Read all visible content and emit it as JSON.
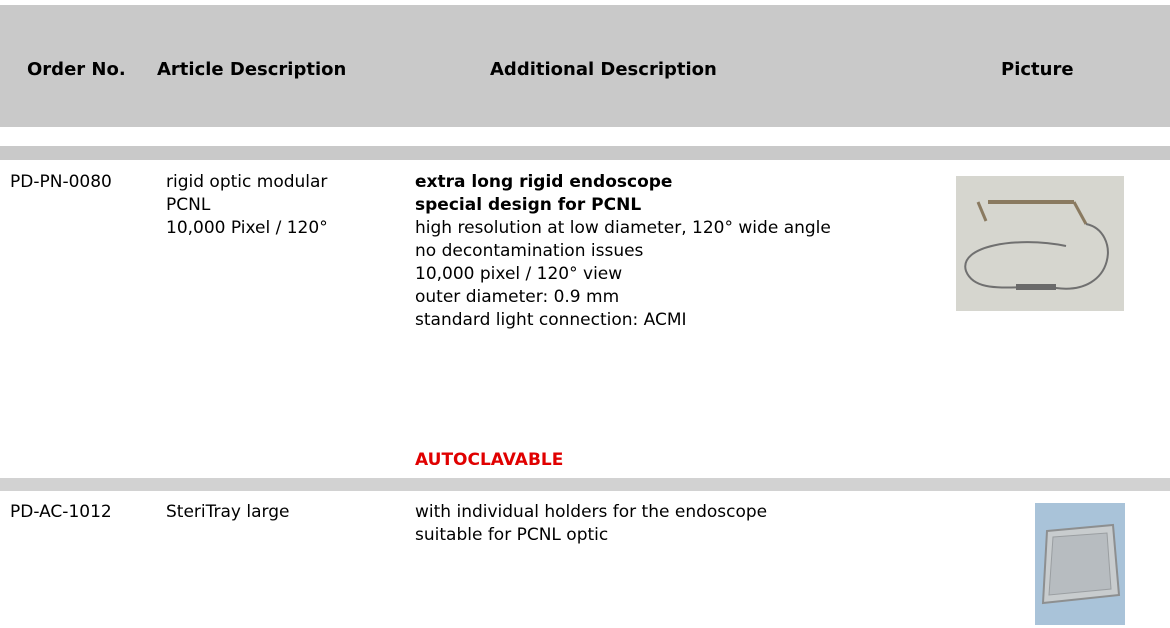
{
  "header": {
    "columns": [
      "Order No.",
      "Article Description",
      "Additional Description",
      "Picture"
    ]
  },
  "rows": [
    {
      "order_no": "PD-PN-0080",
      "article_lines": [
        "rigid optic modular",
        "PCNL",
        "10,000 Pixel / 120°"
      ],
      "headline_lines": [
        "extra long rigid endoscope",
        "special design for PCNL"
      ],
      "description_lines": [
        "high resolution at low diameter, 120° wide angle",
        "no decontamination issues",
        "10,000 pixel / 120° view",
        "outer diameter: 0.9 mm",
        "standard light connection: ACMI"
      ],
      "note": "AUTOCLAVABLE"
    },
    {
      "order_no": "PD-AC-1012",
      "article_lines": [
        "SteriTray large"
      ],
      "headline_lines": [],
      "description_lines": [
        "with individual holders for the endoscope",
        "suitable for PCNL optic"
      ]
    }
  ]
}
